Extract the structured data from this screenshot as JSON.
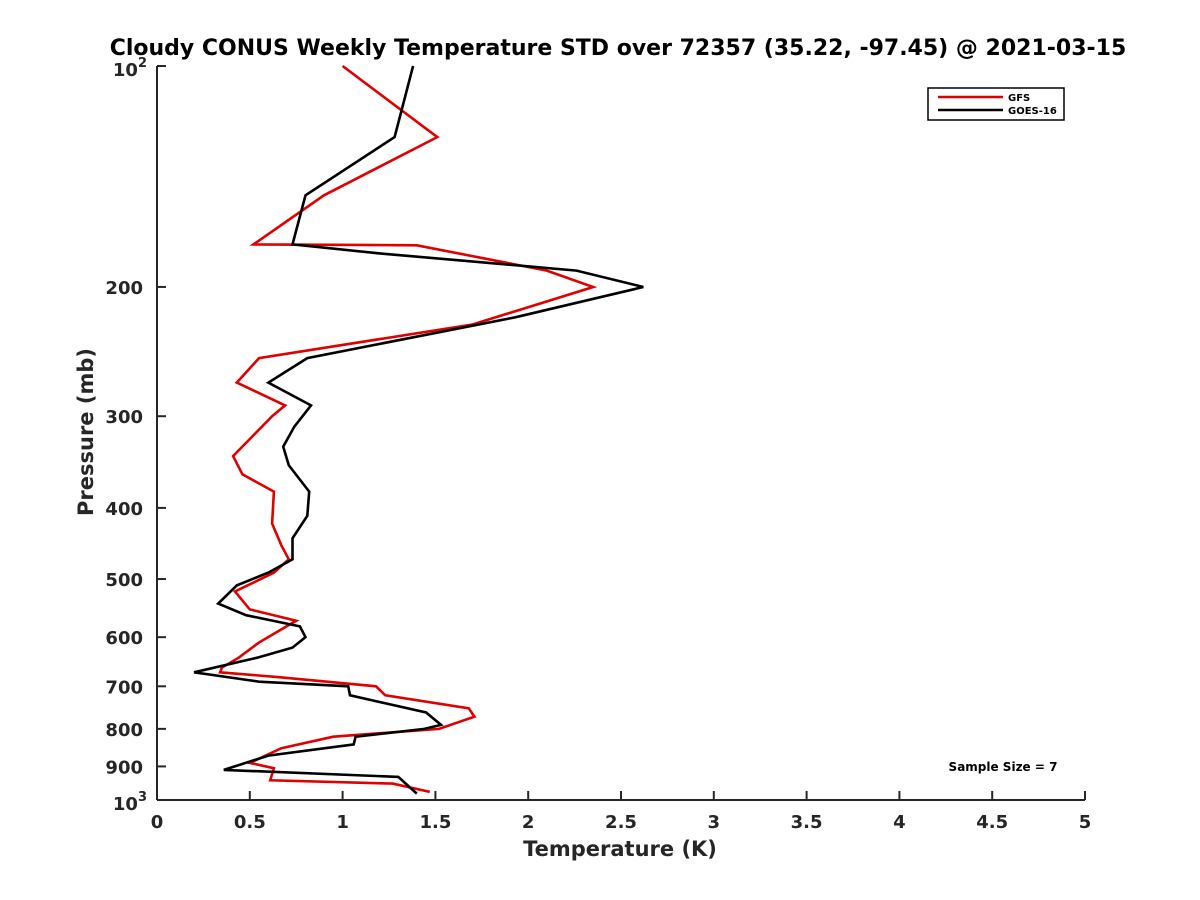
{
  "chart_data": {
    "type": "line",
    "title": "Cloudy CONUS Weekly Temperature STD over 72357 (35.22, -97.45) @ 2021-03-15",
    "xlabel": "Temperature (K)",
    "ylabel": "Pressure (mb)",
    "xlim": [
      0,
      5
    ],
    "ylim": [
      100,
      1000
    ],
    "y_scale": "log",
    "y_reversed": true,
    "x_ticks": [
      0,
      0.5,
      1,
      1.5,
      2,
      2.5,
      3,
      3.5,
      4,
      4.5,
      5
    ],
    "x_tick_labels": [
      "0",
      "0.5",
      "1",
      "1.5",
      "2",
      "2.5",
      "3",
      "3.5",
      "4",
      "4.5",
      "5"
    ],
    "y_ticks": [
      200,
      300,
      400,
      500,
      600,
      700,
      800,
      900
    ],
    "y_tick_labels": [
      "200",
      "300",
      "400",
      "500",
      "600",
      "700",
      "800",
      "900"
    ],
    "y_end_ticks": [
      {
        "value": 100,
        "base": "10",
        "exp": "2"
      },
      {
        "value": 1000,
        "base": "10",
        "exp": "3"
      }
    ],
    "grid": false,
    "legend_position": "top-right",
    "annotation": "Sample Size = 7",
    "series": [
      {
        "name": "GFS",
        "color": "#e00000",
        "points": [
          [
            1.0,
            100
          ],
          [
            1.51,
            125
          ],
          [
            0.9,
            150
          ],
          [
            0.52,
            175
          ],
          [
            1.4,
            175.5
          ],
          [
            2.1,
            190
          ],
          [
            2.35,
            200
          ],
          [
            1.7,
            225
          ],
          [
            0.55,
            250
          ],
          [
            0.43,
            270
          ],
          [
            0.69,
            290
          ],
          [
            0.62,
            300
          ],
          [
            0.41,
            340
          ],
          [
            0.46,
            360
          ],
          [
            0.63,
            380
          ],
          [
            0.62,
            420
          ],
          [
            0.67,
            450
          ],
          [
            0.71,
            470
          ],
          [
            0.63,
            490
          ],
          [
            0.42,
            520
          ],
          [
            0.5,
            550
          ],
          [
            0.75,
            570
          ],
          [
            0.55,
            610
          ],
          [
            0.44,
            640
          ],
          [
            0.35,
            660
          ],
          [
            0.34,
            670
          ],
          [
            0.65,
            680
          ],
          [
            1.18,
            700
          ],
          [
            1.23,
            720
          ],
          [
            1.68,
            750
          ],
          [
            1.71,
            770
          ],
          [
            1.52,
            800
          ],
          [
            0.95,
            820
          ],
          [
            0.67,
            850
          ],
          [
            0.5,
            890
          ],
          [
            0.63,
            905
          ],
          [
            0.61,
            940
          ],
          [
            1.27,
            950
          ],
          [
            1.47,
            975
          ]
        ]
      },
      {
        "name": "GOES-16",
        "color": "#000000",
        "points": [
          [
            1.38,
            100
          ],
          [
            1.28,
            125
          ],
          [
            0.8,
            150
          ],
          [
            0.73,
            175
          ],
          [
            1.2,
            180
          ],
          [
            2.26,
            190
          ],
          [
            2.62,
            200
          ],
          [
            1.93,
            220
          ],
          [
            0.81,
            250
          ],
          [
            0.6,
            270
          ],
          [
            0.83,
            290
          ],
          [
            0.74,
            310
          ],
          [
            0.68,
            330
          ],
          [
            0.71,
            350
          ],
          [
            0.82,
            380
          ],
          [
            0.81,
            410
          ],
          [
            0.73,
            440
          ],
          [
            0.73,
            470
          ],
          [
            0.6,
            490
          ],
          [
            0.43,
            510
          ],
          [
            0.33,
            540
          ],
          [
            0.48,
            560
          ],
          [
            0.77,
            580
          ],
          [
            0.8,
            600
          ],
          [
            0.73,
            620
          ],
          [
            0.54,
            640
          ],
          [
            0.2,
            670
          ],
          [
            0.38,
            680
          ],
          [
            0.55,
            690
          ],
          [
            1.03,
            700
          ],
          [
            1.04,
            720
          ],
          [
            1.45,
            760
          ],
          [
            1.53,
            790
          ],
          [
            1.44,
            800
          ],
          [
            1.07,
            820
          ],
          [
            1.06,
            840
          ],
          [
            0.6,
            870
          ],
          [
            0.36,
            910
          ],
          [
            1.3,
            930
          ],
          [
            1.4,
            980
          ]
        ]
      }
    ]
  }
}
